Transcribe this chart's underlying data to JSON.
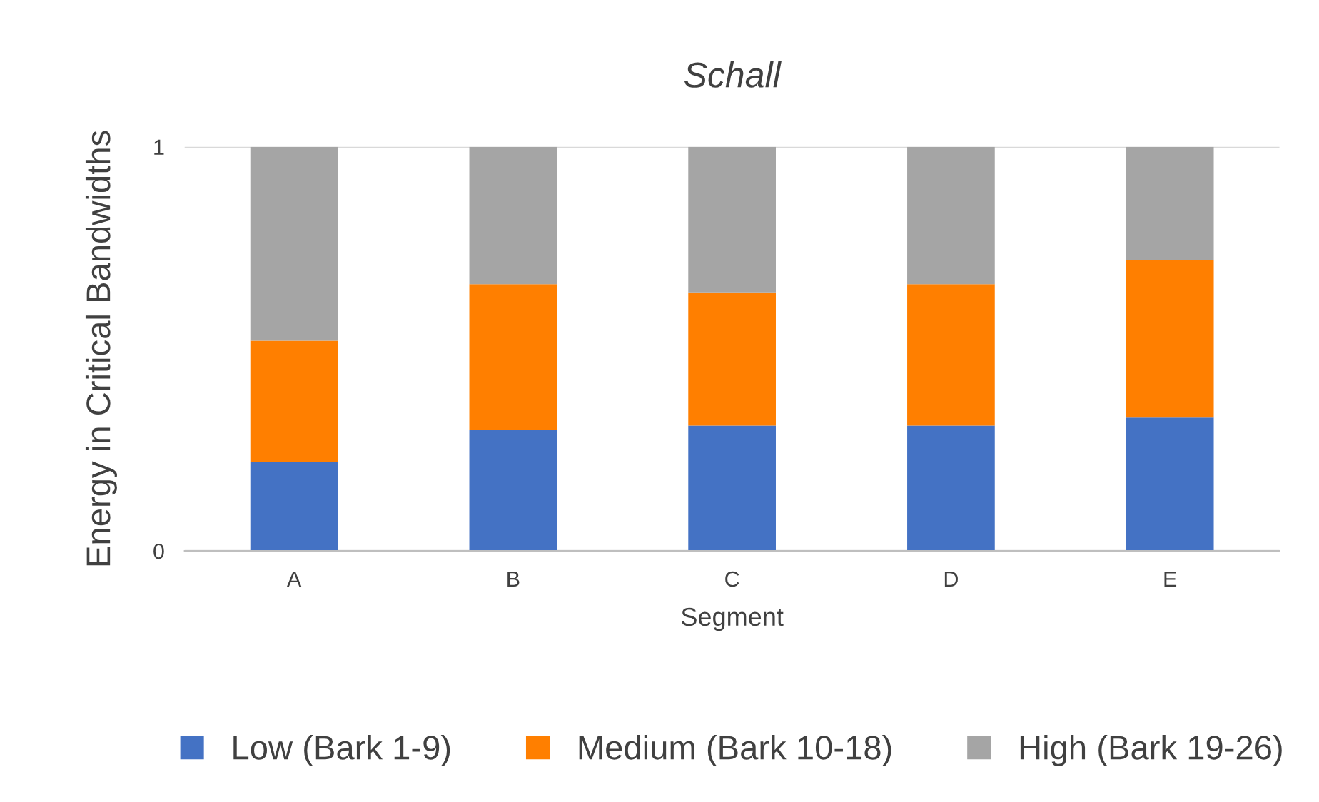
{
  "chart_data": {
    "type": "bar",
    "title": "Schall",
    "xlabel": "Segment",
    "ylabel": "Energy in Critical Bandwidths",
    "categories": [
      "A",
      "B",
      "C",
      "D",
      "E"
    ],
    "stacked": true,
    "series": [
      {
        "name": "Low (Bark 1-9)",
        "color": "#4472c4",
        "values": [
          0.22,
          0.3,
          0.31,
          0.31,
          0.33
        ]
      },
      {
        "name": "Medium (Bark 10-18)",
        "color": "#ff7f00",
        "values": [
          0.3,
          0.36,
          0.33,
          0.35,
          0.39
        ]
      },
      {
        "name": "High (Bark 19-26)",
        "color": "#a5a5a5",
        "values": [
          0.48,
          0.34,
          0.36,
          0.34,
          0.28
        ]
      }
    ],
    "ylim": [
      0,
      1
    ],
    "yticks": [
      0,
      1
    ],
    "grid": "y",
    "legend": "bottom"
  }
}
